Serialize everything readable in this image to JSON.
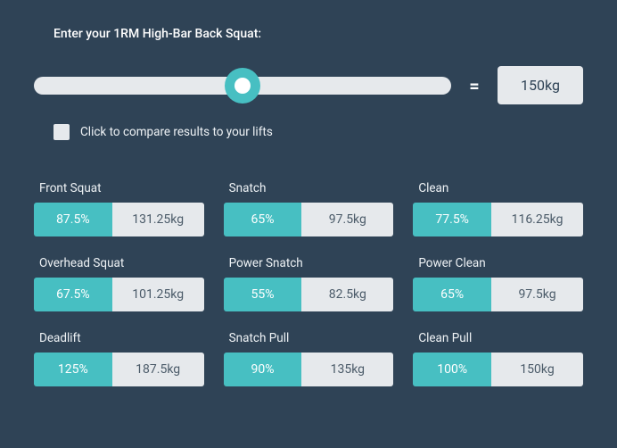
{
  "colors": {
    "background": "#2f4356",
    "accent": "#47bfc2",
    "neutral": "#e6e9ec",
    "text_light": "#ffffff",
    "text_dark": "#4a5a68"
  },
  "prompt_label": "Enter your 1RM High-Bar Back Squat:",
  "slider": {
    "position_pct": 50,
    "equals_symbol": "=",
    "result_value": "150kg"
  },
  "compare": {
    "checked": false,
    "label": "Click to compare results to your lifts"
  },
  "lifts": [
    {
      "name": "Front Squat",
      "pct": "87.5%",
      "value": "131.25kg"
    },
    {
      "name": "Snatch",
      "pct": "65%",
      "value": "97.5kg"
    },
    {
      "name": "Clean",
      "pct": "77.5%",
      "value": "116.25kg"
    },
    {
      "name": "Overhead Squat",
      "pct": "67.5%",
      "value": "101.25kg"
    },
    {
      "name": "Power Snatch",
      "pct": "55%",
      "value": "82.5kg"
    },
    {
      "name": "Power Clean",
      "pct": "65%",
      "value": "97.5kg"
    },
    {
      "name": "Deadlift",
      "pct": "125%",
      "value": "187.5kg"
    },
    {
      "name": "Snatch Pull",
      "pct": "90%",
      "value": "135kg"
    },
    {
      "name": "Clean Pull",
      "pct": "100%",
      "value": "150kg"
    }
  ]
}
